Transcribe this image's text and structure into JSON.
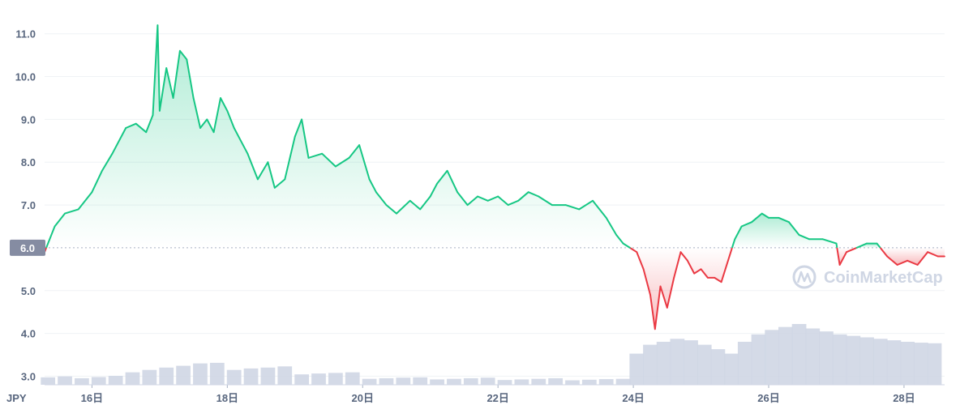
{
  "chart_data": {
    "type": "area",
    "currency_label": "JPY",
    "watermark": "CoinMarketCap",
    "reference_value": 6.0,
    "ylim": [
      2.8,
      11.6
    ],
    "yticks": [
      3.0,
      4.0,
      5.0,
      6.0,
      7.0,
      8.0,
      9.0,
      10.0,
      11.0
    ],
    "ytick_labels": [
      "3.0",
      "4.0",
      "5.0",
      "6.0",
      "7.0",
      "8.0",
      "9.0",
      "10.0",
      "11.0"
    ],
    "xlim": [
      15.3,
      28.6
    ],
    "xticks": [
      16,
      18,
      20,
      22,
      24,
      26,
      28
    ],
    "xtick_labels": [
      "16日",
      "18日",
      "20日",
      "22日",
      "24日",
      "26日",
      "28日"
    ],
    "up_color": "#16c784",
    "down_color": "#ea3943",
    "volume_color": "#cfd6e4",
    "series": [
      {
        "x": [
          15.3,
          15.45,
          15.6,
          15.8,
          16.0,
          16.15,
          16.3,
          16.5,
          16.65,
          16.8,
          16.9,
          16.97,
          17.0,
          17.1,
          17.2,
          17.3,
          17.4,
          17.5,
          17.6,
          17.7,
          17.8,
          17.9,
          18.0,
          18.1,
          18.2,
          18.3,
          18.45,
          18.6,
          18.7,
          18.85,
          19.0,
          19.1,
          19.2,
          19.4,
          19.6,
          19.8,
          19.95,
          20.1,
          20.2,
          20.35,
          20.5,
          20.7,
          20.85,
          21.0,
          21.1,
          21.25,
          21.4,
          21.55,
          21.7,
          21.85,
          22.0,
          22.15,
          22.3,
          22.45,
          22.6,
          22.8,
          23.0,
          23.2,
          23.4,
          23.6,
          23.75,
          23.85,
          23.95,
          24.05,
          24.15,
          24.25,
          24.32,
          24.4,
          24.5,
          24.6,
          24.7,
          24.8,
          24.9,
          25.0,
          25.1,
          25.2,
          25.3,
          25.4,
          25.5,
          25.6,
          25.75,
          25.9,
          26.0,
          26.15,
          26.3,
          26.45,
          26.6,
          26.8,
          27.0,
          27.05,
          27.15,
          27.3,
          27.45,
          27.6,
          27.75,
          27.9,
          28.05,
          28.2,
          28.35,
          28.5,
          28.6
        ],
        "y": [
          5.9,
          6.5,
          6.8,
          6.9,
          7.3,
          7.8,
          8.2,
          8.8,
          8.9,
          8.7,
          9.1,
          11.2,
          9.2,
          10.2,
          9.5,
          10.6,
          10.4,
          9.5,
          8.8,
          9.0,
          8.7,
          9.5,
          9.2,
          8.8,
          8.5,
          8.2,
          7.6,
          8.0,
          7.4,
          7.6,
          8.6,
          9.0,
          8.1,
          8.2,
          7.9,
          8.1,
          8.4,
          7.6,
          7.3,
          7.0,
          6.8,
          7.1,
          6.9,
          7.2,
          7.5,
          7.8,
          7.3,
          7.0,
          7.2,
          7.1,
          7.2,
          7.0,
          7.1,
          7.3,
          7.2,
          7.0,
          7.0,
          6.9,
          7.1,
          6.7,
          6.3,
          6.1,
          6.0,
          5.9,
          5.5,
          4.9,
          4.1,
          5.1,
          4.6,
          5.3,
          5.9,
          5.7,
          5.4,
          5.5,
          5.3,
          5.3,
          5.2,
          5.7,
          6.2,
          6.5,
          6.6,
          6.8,
          6.7,
          6.7,
          6.6,
          6.3,
          6.2,
          6.2,
          6.1,
          5.6,
          5.9,
          6.0,
          6.1,
          6.1,
          5.8,
          5.6,
          5.7,
          5.6,
          5.9,
          5.8,
          5.8
        ]
      }
    ],
    "volume": {
      "x": [
        15.35,
        15.6,
        15.85,
        16.1,
        16.35,
        16.6,
        16.85,
        17.1,
        17.35,
        17.6,
        17.85,
        18.1,
        18.35,
        18.6,
        18.85,
        19.1,
        19.35,
        19.6,
        19.85,
        20.1,
        20.35,
        20.6,
        20.85,
        21.1,
        21.35,
        21.6,
        21.85,
        22.1,
        22.35,
        22.6,
        22.85,
        23.1,
        23.35,
        23.6,
        23.85,
        24.05,
        24.25,
        24.45,
        24.65,
        24.85,
        25.05,
        25.25,
        25.45,
        25.65,
        25.85,
        26.05,
        26.25,
        26.45,
        26.65,
        26.85,
        27.05,
        27.25,
        27.45,
        27.65,
        27.85,
        28.05,
        28.25,
        28.45
      ],
      "values": [
        0.25,
        0.28,
        0.22,
        0.26,
        0.3,
        0.42,
        0.5,
        0.58,
        0.64,
        0.72,
        0.74,
        0.5,
        0.55,
        0.58,
        0.62,
        0.35,
        0.38,
        0.4,
        0.42,
        0.2,
        0.22,
        0.24,
        0.25,
        0.18,
        0.2,
        0.22,
        0.24,
        0.16,
        0.18,
        0.2,
        0.22,
        0.15,
        0.17,
        0.19,
        0.2,
        1.05,
        1.35,
        1.45,
        1.55,
        1.5,
        1.35,
        1.2,
        1.05,
        1.45,
        1.7,
        1.85,
        1.95,
        2.05,
        1.9,
        1.8,
        1.7,
        1.65,
        1.6,
        1.55,
        1.5,
        1.45,
        1.42,
        1.4
      ]
    }
  }
}
